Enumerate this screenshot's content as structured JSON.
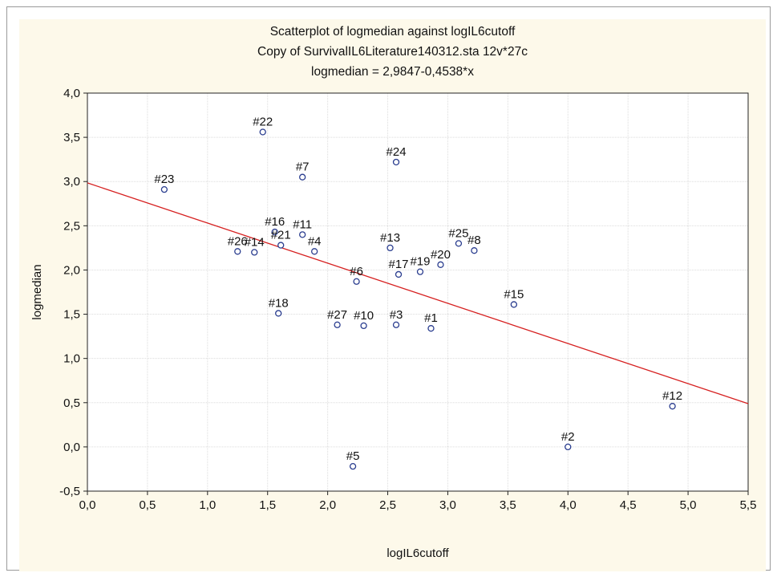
{
  "chart_data": {
    "type": "scatter",
    "title": "Scatterplot of logmedian against logIL6cutoff",
    "subtitle": "Copy of SurvivalIL6Literature140312.sta 12v*27c",
    "equation": "logmedian = 2,9847-0,4538*x",
    "xlabel": "logIL6cutoff",
    "ylabel": "logmedian",
    "xlim": [
      0,
      5.5
    ],
    "ylim": [
      -0.5,
      4.0
    ],
    "x_ticks": [
      "0,0",
      "0,5",
      "1,0",
      "1,5",
      "2,0",
      "2,5",
      "3,0",
      "3,5",
      "4,0",
      "4,5",
      "5,0",
      "5,5"
    ],
    "y_ticks": [
      "-0,5",
      "0,0",
      "0,5",
      "1,0",
      "1,5",
      "2,0",
      "2,5",
      "3,0",
      "3,5",
      "4,0"
    ],
    "grid": true,
    "regression": {
      "intercept": 2.9847,
      "slope": -0.4538,
      "color": "#d62020"
    },
    "marker_color": "#2a3d8f",
    "points": [
      {
        "label": "#1",
        "x": 2.86,
        "y": 1.34
      },
      {
        "label": "#2",
        "x": 4.0,
        "y": 0.0
      },
      {
        "label": "#3",
        "x": 2.57,
        "y": 1.38
      },
      {
        "label": "#4",
        "x": 1.89,
        "y": 2.21
      },
      {
        "label": "#5",
        "x": 2.21,
        "y": -0.22
      },
      {
        "label": "#6",
        "x": 2.24,
        "y": 1.87
      },
      {
        "label": "#7",
        "x": 1.79,
        "y": 3.05
      },
      {
        "label": "#8",
        "x": 3.22,
        "y": 2.22
      },
      {
        "label": "#10",
        "x": 2.3,
        "y": 1.37
      },
      {
        "label": "#11",
        "x": 1.79,
        "y": 2.4
      },
      {
        "label": "#12",
        "x": 4.87,
        "y": 0.46
      },
      {
        "label": "#13",
        "x": 2.52,
        "y": 2.25
      },
      {
        "label": "#14",
        "x": 1.39,
        "y": 2.2
      },
      {
        "label": "#15",
        "x": 3.55,
        "y": 1.61
      },
      {
        "label": "#16",
        "x": 1.56,
        "y": 2.43
      },
      {
        "label": "#17",
        "x": 2.59,
        "y": 1.95
      },
      {
        "label": "#18",
        "x": 1.59,
        "y": 1.51
      },
      {
        "label": "#19",
        "x": 2.77,
        "y": 1.98
      },
      {
        "label": "#20",
        "x": 2.94,
        "y": 2.06
      },
      {
        "label": "#21",
        "x": 1.61,
        "y": 2.28
      },
      {
        "label": "#22",
        "x": 1.46,
        "y": 3.56
      },
      {
        "label": "#23",
        "x": 0.64,
        "y": 2.91
      },
      {
        "label": "#24",
        "x": 2.57,
        "y": 3.22
      },
      {
        "label": "#25",
        "x": 3.09,
        "y": 2.3
      },
      {
        "label": "#26",
        "x": 1.25,
        "y": 2.21
      },
      {
        "label": "#27",
        "x": 2.08,
        "y": 1.38
      }
    ]
  }
}
